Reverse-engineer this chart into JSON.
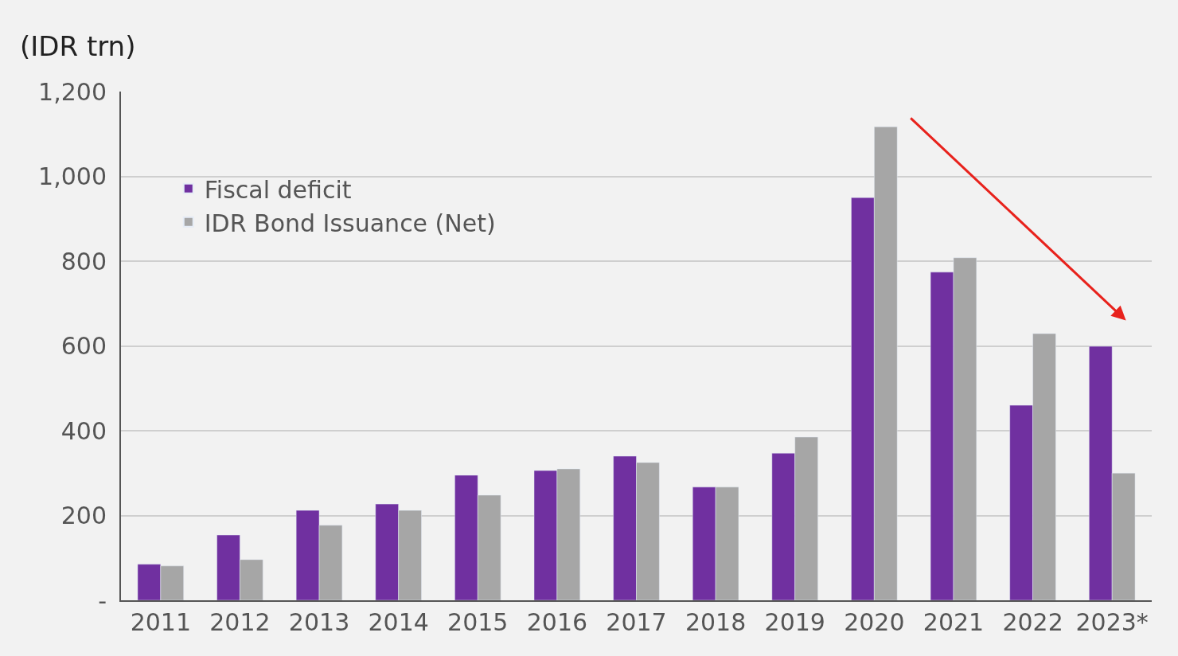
{
  "chart_data": {
    "type": "bar",
    "ylabel": "(IDR trn)",
    "categories": [
      "2011",
      "2012",
      "2013",
      "2014",
      "2015",
      "2016",
      "2017",
      "2018",
      "2019",
      "2020",
      "2021",
      "2022",
      "2023*"
    ],
    "series": [
      {
        "name": "Fiscal deficit",
        "color": "#7030a0",
        "values": [
          85,
          154,
          212,
          227,
          295,
          306,
          340,
          267,
          347,
          950,
          774,
          460,
          599
        ]
      },
      {
        "name": "IDR Bond Issuance (Net)",
        "color": "#a6a6a6",
        "values": [
          81,
          96,
          177,
          212,
          248,
          310,
          325,
          267,
          385,
          1117,
          808,
          629,
          300
        ]
      }
    ],
    "ylim": [
      0,
      1200
    ],
    "yticks": [
      {
        "value": 0,
        "label": "-"
      },
      200,
      400,
      600,
      800,
      {
        "value": 1000,
        "label": "1,000"
      },
      {
        "value": 1200,
        "label": "1,200"
      }
    ],
    "grid": "y",
    "legend": "top left"
  }
}
